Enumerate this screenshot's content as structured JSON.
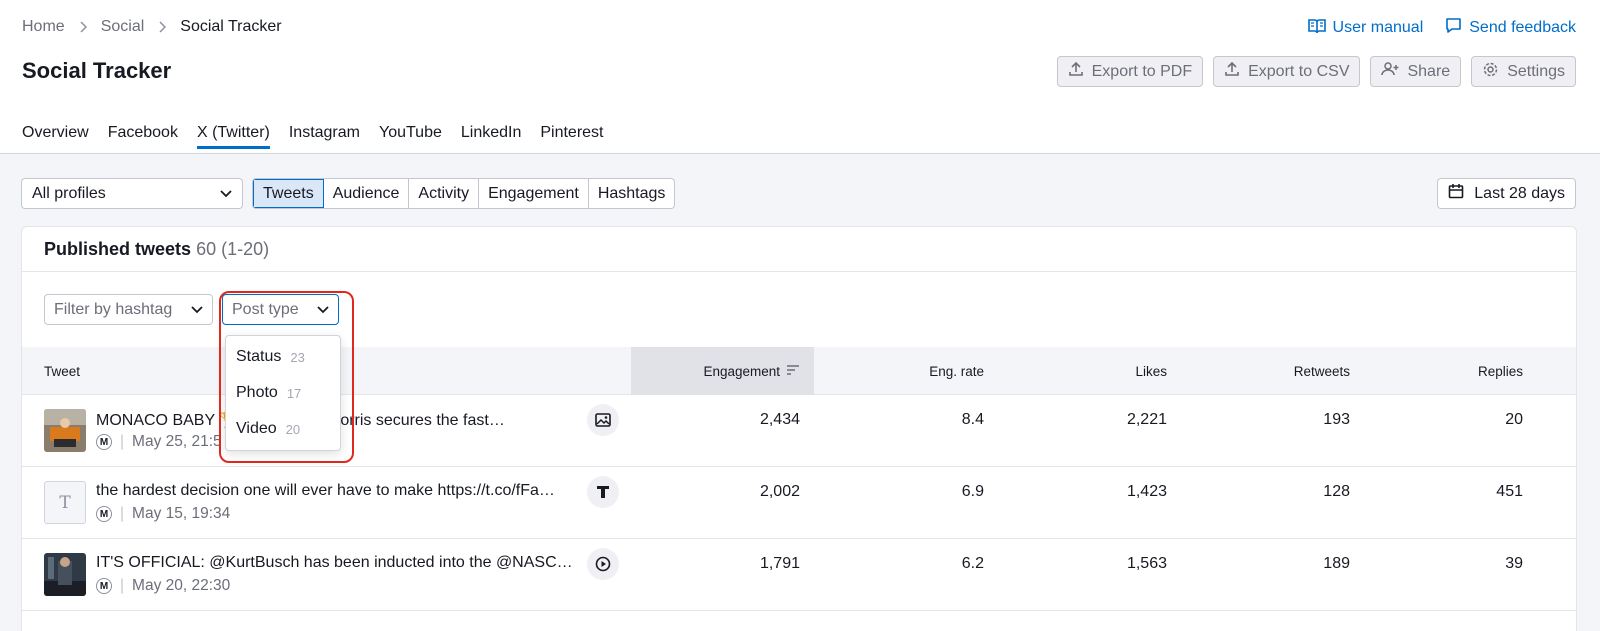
{
  "breadcrumb": [
    "Home",
    "Social",
    "Social Tracker"
  ],
  "page_title": "Social Tracker",
  "top_links": {
    "manual": "User manual",
    "feedback": "Send feedback"
  },
  "actions": {
    "pdf": "Export to PDF",
    "csv": "Export to CSV",
    "share": "Share",
    "settings": "Settings"
  },
  "tabs": [
    "Overview",
    "Facebook",
    "X (Twitter)",
    "Instagram",
    "YouTube",
    "LinkedIn",
    "Pinterest"
  ],
  "active_tab": "X (Twitter)",
  "profile_select": "All profiles",
  "sections": [
    "Tweets",
    "Audience",
    "Activity",
    "Engagement",
    "Hashtags"
  ],
  "active_section": "Tweets",
  "date_range": "Last 28 days",
  "card": {
    "title": "Published tweets",
    "count": "60 (1-20)"
  },
  "filters": {
    "hashtag_placeholder": "Filter by hashtag",
    "post_type_placeholder": "Post type"
  },
  "post_type_options": [
    {
      "label": "Status",
      "count": "23"
    },
    {
      "label": "Photo",
      "count": "17"
    },
    {
      "label": "Video",
      "count": "20"
    }
  ],
  "columns": {
    "tweet": "Tweet",
    "engagement": "Engagement",
    "eng_rate": "Eng. rate",
    "likes": "Likes",
    "retweets": "Retweets",
    "replies": "Replies"
  },
  "rows": [
    {
      "text": "MONACO BABY 🏆 🇲🇨 @LandoNorris secures the fast…",
      "badge": "M",
      "date": "May 25, 21:5",
      "type_icon": "photo-icon",
      "engagement": "2,434",
      "eng_rate": "8.4",
      "likes": "2,221",
      "retweets": "193",
      "replies": "20"
    },
    {
      "text": "the hardest decision one will ever have to make https://t.co/fFa…",
      "badge": "M",
      "date": "May 15, 19:34",
      "type_icon": "text-icon",
      "engagement": "2,002",
      "eng_rate": "6.9",
      "likes": "1,423",
      "retweets": "128",
      "replies": "451"
    },
    {
      "text": "IT'S OFFICIAL: @KurtBusch has been inducted into the @NASC…",
      "badge": "M",
      "date": "May 20, 22:30",
      "type_icon": "video-icon",
      "engagement": "1,791",
      "eng_rate": "6.2",
      "likes": "1,563",
      "retweets": "189",
      "replies": "39"
    }
  ],
  "colors": {
    "accent": "#006dca",
    "highlight": "#e0281f"
  }
}
